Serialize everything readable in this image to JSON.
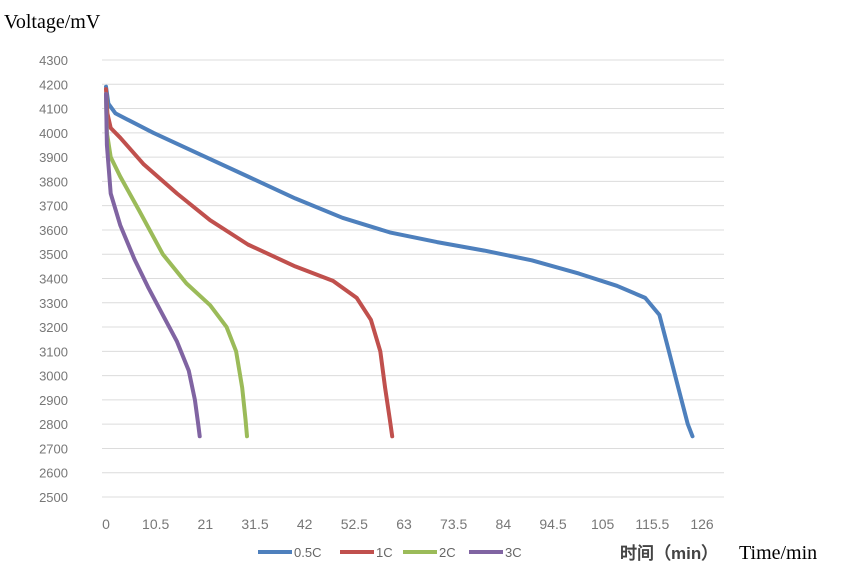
{
  "y_axis_label": "Voltage/mV",
  "x_axis_label_cn": "时间（min）",
  "x_axis_label_en": "Time/min",
  "chart_data": {
    "type": "line",
    "xlabel": "时间（min）",
    "ylabel": "Voltage/mV",
    "xlim": [
      0,
      126
    ],
    "ylim": [
      2500,
      4300
    ],
    "x_ticks": [
      "0",
      "10.5",
      "21",
      "31.5",
      "42",
      "52.5",
      "63",
      "73.5",
      "84",
      "94.5",
      "105",
      "115.5",
      "126"
    ],
    "y_ticks": [
      "4300",
      "4200",
      "4100",
      "4000",
      "3900",
      "3800",
      "3700",
      "3600",
      "3500",
      "3400",
      "3300",
      "3200",
      "3100",
      "3000",
      "2900",
      "2800",
      "2700",
      "2600",
      "2500"
    ],
    "grid": "horizontal",
    "legend_position": "bottom",
    "series": [
      {
        "name": "0.5C",
        "color": "#4e80bd",
        "points": [
          [
            0,
            4190
          ],
          [
            0.5,
            4120
          ],
          [
            2,
            4080
          ],
          [
            5,
            4050
          ],
          [
            10,
            4000
          ],
          [
            20,
            3910
          ],
          [
            30,
            3820
          ],
          [
            40,
            3730
          ],
          [
            50,
            3650
          ],
          [
            60,
            3590
          ],
          [
            70,
            3550
          ],
          [
            80,
            3515
          ],
          [
            90,
            3475
          ],
          [
            100,
            3420
          ],
          [
            108,
            3370
          ],
          [
            114,
            3320
          ],
          [
            117,
            3250
          ],
          [
            119,
            3100
          ],
          [
            121,
            2950
          ],
          [
            123,
            2800
          ],
          [
            124,
            2750
          ]
        ]
      },
      {
        "name": "1C",
        "color": "#c0504d",
        "points": [
          [
            0,
            4180
          ],
          [
            0.3,
            4080
          ],
          [
            1,
            4020
          ],
          [
            3,
            3980
          ],
          [
            8,
            3870
          ],
          [
            15,
            3750
          ],
          [
            22,
            3640
          ],
          [
            30,
            3540
          ],
          [
            40,
            3450
          ],
          [
            48,
            3390
          ],
          [
            53,
            3320
          ],
          [
            56,
            3230
          ],
          [
            58,
            3100
          ],
          [
            59,
            2950
          ],
          [
            60,
            2820
          ],
          [
            60.5,
            2750
          ]
        ]
      },
      {
        "name": "2C",
        "color": "#9bbb59",
        "points": [
          [
            0,
            4160
          ],
          [
            0.2,
            4000
          ],
          [
            1,
            3900
          ],
          [
            3,
            3820
          ],
          [
            7,
            3680
          ],
          [
            12,
            3500
          ],
          [
            17,
            3380
          ],
          [
            22,
            3290
          ],
          [
            25.5,
            3200
          ],
          [
            27.5,
            3100
          ],
          [
            28.8,
            2950
          ],
          [
            29.5,
            2820
          ],
          [
            29.8,
            2750
          ]
        ]
      },
      {
        "name": "3C",
        "color": "#8064a2",
        "points": [
          [
            0,
            4160
          ],
          [
            0.2,
            3950
          ],
          [
            1,
            3750
          ],
          [
            3,
            3620
          ],
          [
            6,
            3480
          ],
          [
            9,
            3360
          ],
          [
            12,
            3250
          ],
          [
            15,
            3140
          ],
          [
            17.5,
            3020
          ],
          [
            18.8,
            2900
          ],
          [
            19.5,
            2800
          ],
          [
            19.8,
            2750
          ]
        ]
      }
    ]
  }
}
